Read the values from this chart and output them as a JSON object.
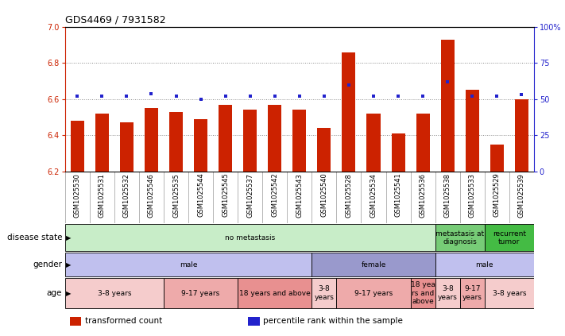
{
  "title": "GDS4469 / 7931582",
  "samples": [
    "GSM1025530",
    "GSM1025531",
    "GSM1025532",
    "GSM1025546",
    "GSM1025535",
    "GSM1025544",
    "GSM1025545",
    "GSM1025537",
    "GSM1025542",
    "GSM1025543",
    "GSM1025540",
    "GSM1025528",
    "GSM1025534",
    "GSM1025541",
    "GSM1025536",
    "GSM1025538",
    "GSM1025533",
    "GSM1025529",
    "GSM1025539"
  ],
  "bar_values": [
    6.48,
    6.52,
    6.47,
    6.55,
    6.53,
    6.49,
    6.57,
    6.54,
    6.57,
    6.54,
    6.44,
    6.86,
    6.52,
    6.41,
    6.52,
    6.93,
    6.65,
    6.35,
    6.6
  ],
  "dot_values": [
    52,
    52,
    52,
    54,
    52,
    50,
    52,
    52,
    52,
    52,
    52,
    60,
    52,
    52,
    52,
    62,
    52,
    52,
    53
  ],
  "ylim_left": [
    6.2,
    7.0
  ],
  "ylim_right": [
    0,
    100
  ],
  "yticks_left": [
    6.2,
    6.4,
    6.6,
    6.8,
    7.0
  ],
  "yticks_right": [
    0,
    25,
    50,
    75,
    100
  ],
  "bar_color": "#cc2200",
  "dot_color": "#2222cc",
  "grid_color": "#888888",
  "axis_color_left": "#cc2200",
  "axis_color_right": "#2222cc",
  "disease_state_groups": [
    {
      "label": "no metastasis",
      "start": 0,
      "end": 15,
      "color": "#c8edc8"
    },
    {
      "label": "metastasis at\ndiagnosis",
      "start": 15,
      "end": 17,
      "color": "#77cc77"
    },
    {
      "label": "recurrent\ntumor",
      "start": 17,
      "end": 19,
      "color": "#44bb44"
    }
  ],
  "gender_groups": [
    {
      "label": "male",
      "start": 0,
      "end": 10,
      "color": "#c0c0ee"
    },
    {
      "label": "female",
      "start": 10,
      "end": 15,
      "color": "#9999cc"
    },
    {
      "label": "male",
      "start": 15,
      "end": 19,
      "color": "#c0c0ee"
    }
  ],
  "age_groups": [
    {
      "label": "3-8 years",
      "start": 0,
      "end": 4,
      "color": "#f5cccc"
    },
    {
      "label": "9-17 years",
      "start": 4,
      "end": 7,
      "color": "#eeaaaa"
    },
    {
      "label": "18 years and above",
      "start": 7,
      "end": 10,
      "color": "#e89090"
    },
    {
      "label": "3-8\nyears",
      "start": 10,
      "end": 11,
      "color": "#f5cccc"
    },
    {
      "label": "9-17 years",
      "start": 11,
      "end": 14,
      "color": "#eeaaaa"
    },
    {
      "label": "18 yea\nrs and\nabove",
      "start": 14,
      "end": 15,
      "color": "#e89090"
    },
    {
      "label": "3-8\nyears",
      "start": 15,
      "end": 16,
      "color": "#f5cccc"
    },
    {
      "label": "9-17\nyears",
      "start": 16,
      "end": 17,
      "color": "#eeaaaa"
    },
    {
      "label": "3-8 years",
      "start": 17,
      "end": 19,
      "color": "#f5cccc"
    }
  ],
  "row_labels": [
    "disease state",
    "gender",
    "age"
  ],
  "legend_items": [
    {
      "color": "#cc2200",
      "label": "transformed count"
    },
    {
      "color": "#2222cc",
      "label": "percentile rank within the sample"
    }
  ]
}
